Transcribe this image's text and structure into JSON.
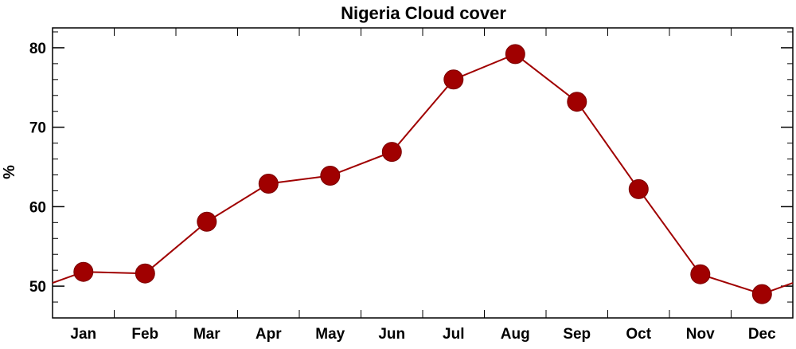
{
  "chart_data": {
    "type": "line",
    "title": "Nigeria Cloud cover",
    "xlabel": "",
    "ylabel": "%",
    "categories": [
      "Jan",
      "Feb",
      "Mar",
      "Apr",
      "May",
      "Jun",
      "Jul",
      "Aug",
      "Sep",
      "Oct",
      "Nov",
      "Dec"
    ],
    "series": [
      {
        "values": [
          51.8,
          51.6,
          58.1,
          62.9,
          63.9,
          66.9,
          76.0,
          79.2,
          73.2,
          62.2,
          51.5,
          49.0
        ]
      }
    ],
    "ylim": [
      46,
      82.5
    ],
    "yticks": [
      50,
      60,
      70,
      80
    ],
    "grid": false,
    "legend": "none",
    "line_color": "#a00000",
    "marker_color": "#a00000"
  }
}
